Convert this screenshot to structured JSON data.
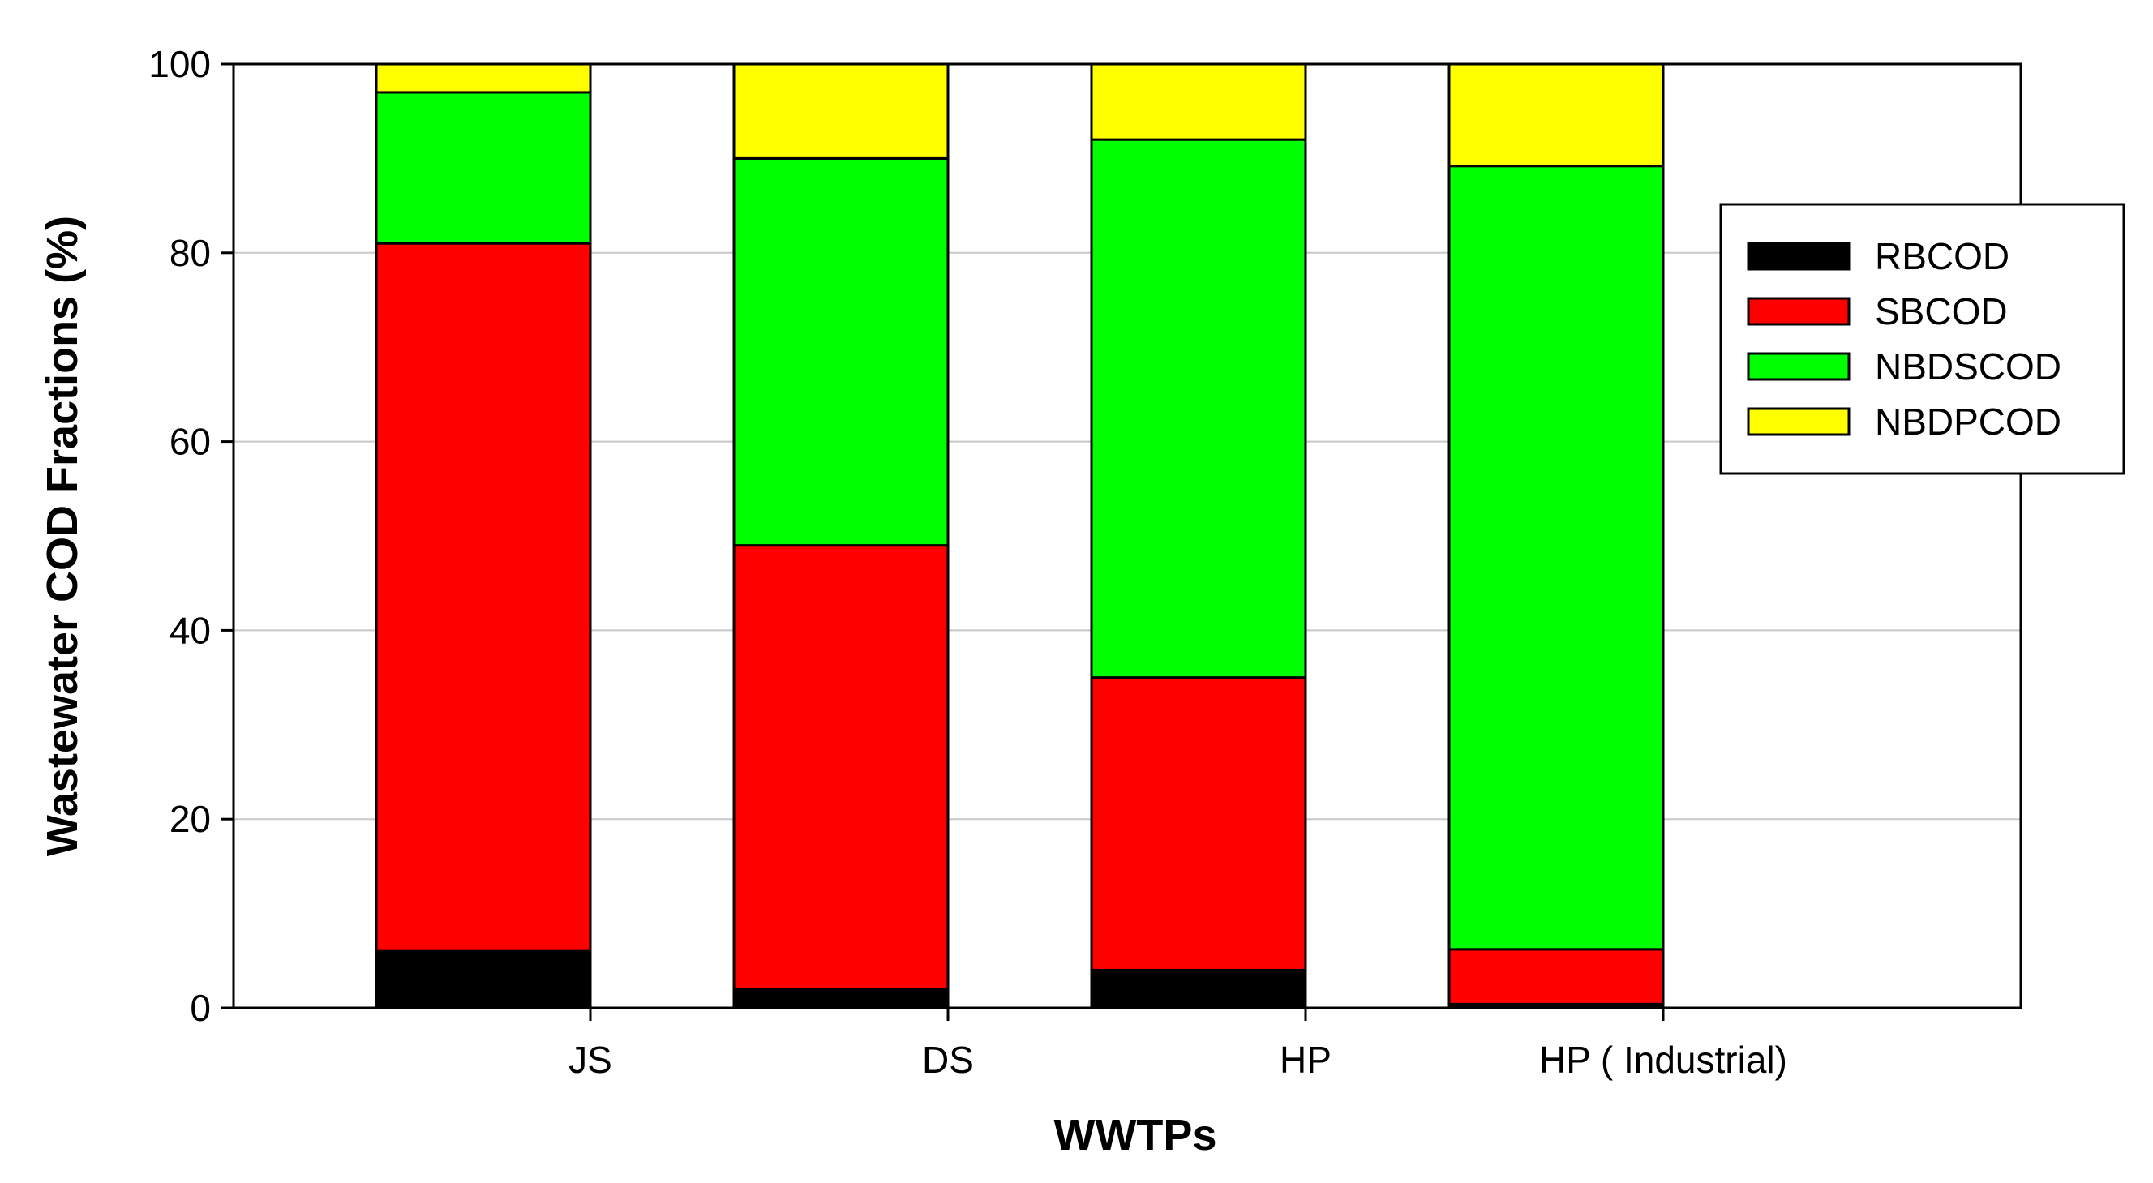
{
  "chart_data": {
    "type": "bar",
    "stacked": true,
    "title": "",
    "xlabel": "WWTPs",
    "ylabel": "Wastewater COD Fractions (%)",
    "ylim": [
      0,
      100
    ],
    "yticks": [
      0,
      20,
      40,
      60,
      80,
      100
    ],
    "grid": true,
    "legend_position": "top-right",
    "categories": [
      "JS",
      "DS",
      "HP",
      "HP ( Industrial)"
    ],
    "series": [
      {
        "name": "RBCOD",
        "color": "#000000",
        "values": [
          6,
          2,
          4,
          0.4
        ]
      },
      {
        "name": "SBCOD",
        "color": "#ff0000",
        "values": [
          75,
          47,
          31,
          5.8
        ]
      },
      {
        "name": "NBDSCOD",
        "color": "#00ff00",
        "values": [
          16,
          41,
          57,
          83
        ]
      },
      {
        "name": "NBDPCOD",
        "color": "#ffff00",
        "values": [
          3,
          10,
          8,
          10.8
        ]
      }
    ]
  }
}
